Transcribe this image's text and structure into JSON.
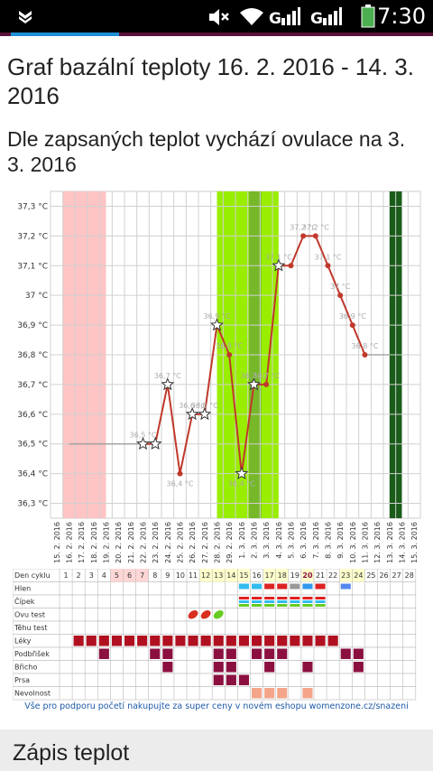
{
  "status_bar": {
    "time": "7:30"
  },
  "page": {
    "title": "Graf bazální teploty 16. 2. 2016 - 14. 3. 2016",
    "subtitle": "Dle zapsaných teplot vychází ovulace na 3. 3. 2016",
    "footer_note": "Vše pro podporu početí nakupujte za super ceny v novém eshopu womenzone.cz/snazeni",
    "section_title": "Zápis teplot"
  },
  "colors": {
    "accent": "#5a1239",
    "tab": "#1e90d6",
    "line": "#c0392b",
    "period": "#ffc4c4",
    "fertile": "#99ee00",
    "ovulation": "#76b82a",
    "today": "#1a5c1a",
    "cell_marker": "#8b1040"
  },
  "chart_data": {
    "type": "line",
    "y_ticks": [
      "36,3 °C",
      "36,4 °C",
      "36,5 °C",
      "36,6 °C",
      "36,7 °C",
      "36,8 °C",
      "36,9 °C",
      "37 °C",
      "37,1 °C",
      "37,2 °C",
      "37,3 °C"
    ],
    "ylim": [
      36.25,
      37.35
    ],
    "dates": [
      "15. 2. 2016",
      "16. 2. 2016",
      "17. 2. 2016",
      "18. 2. 2016",
      "19. 2. 2016",
      "20. 2. 2016",
      "21. 2. 2016",
      "22. 2. 2016",
      "23. 2. 2016",
      "24. 2. 2016",
      "25. 2. 2016",
      "26. 2. 2016",
      "27. 2. 2016",
      "28. 2. 2016",
      "29. 2. 2016",
      "1. 3. 2016",
      "2. 3. 2016",
      "3. 3. 2016",
      "4. 3. 2016",
      "5. 3. 2016",
      "6. 3. 2016",
      "7. 3. 2016",
      "8. 3. 2016",
      "9. 3. 2016",
      "10. 3. 2016",
      "11. 3. 2016",
      "12. 3. 2016",
      "13. 3. 2016",
      "14. 3. 2016",
      "15. 3. 2016"
    ],
    "baseline": {
      "value": 36.5,
      "label": "",
      "from_day": 1,
      "to_day": 7
    },
    "coverline": {
      "value": 36.8,
      "from_day": 25,
      "to_day": 27
    },
    "points": [
      {
        "day": 7,
        "value": 36.5,
        "label": "36,5 °C",
        "star": true
      },
      {
        "day": 8,
        "value": 36.5,
        "label": "",
        "star": true
      },
      {
        "day": 9,
        "value": 36.7,
        "label": "36,7 °C",
        "star": true
      },
      {
        "day": 10,
        "value": 36.4,
        "label": "36,4 °C",
        "star": false
      },
      {
        "day": 11,
        "value": 36.6,
        "label": "36,6 °C",
        "star": true
      },
      {
        "day": 12,
        "value": 36.6,
        "label": "36,6 °C",
        "star": true
      },
      {
        "day": 13,
        "value": 36.9,
        "label": "36,9 °C",
        "star": true
      },
      {
        "day": 14,
        "value": 36.8,
        "label": "36,8 °C",
        "star": false
      },
      {
        "day": 15,
        "value": 36.4,
        "label": "36,4 °C",
        "star": true
      },
      {
        "day": 16,
        "value": 36.7,
        "label": "36,7 °C",
        "star": true
      },
      {
        "day": 17,
        "value": 36.7,
        "label": "36,7 °C",
        "star": false
      },
      {
        "day": 18,
        "value": 37.1,
        "label": "37,1 °C",
        "star": true
      },
      {
        "day": 19,
        "value": 37.1,
        "label": "",
        "star": false
      },
      {
        "day": 20,
        "value": 37.2,
        "label": "37,2 °C",
        "star": false
      },
      {
        "day": 21,
        "value": 37.2,
        "label": "37,2 °C",
        "star": false
      },
      {
        "day": 22,
        "value": 37.1,
        "label": "37,1 °C",
        "star": false
      },
      {
        "day": 23,
        "value": 37.0,
        "label": "37 °C",
        "star": false
      },
      {
        "day": 24,
        "value": 36.9,
        "label": "36,9 °C",
        "star": false
      },
      {
        "day": 25,
        "value": 36.8,
        "label": "36,8 °C",
        "star": false
      }
    ],
    "bands": [
      {
        "kind": "period",
        "from_day": 1,
        "to_day": 4.5
      },
      {
        "kind": "fertile",
        "from_day": 13.5,
        "to_day": 18.5
      },
      {
        "kind": "ovulation",
        "from_day": 16.1,
        "to_day": 17.1
      },
      {
        "kind": "today",
        "from_day": 27.5,
        "to_day": 28.5
      }
    ],
    "grid": true
  },
  "cycle_table": {
    "row_labels": [
      "Den cyklu",
      "Hlen",
      "Čípek",
      "Ovu test",
      "Těhu test",
      "Léky",
      "Podbřišek",
      "Břicho",
      "Prsa",
      "Nevolnost"
    ],
    "days": [
      "1",
      "2",
      "3",
      "4",
      "5",
      "6",
      "7",
      "8",
      "9",
      "10",
      "11",
      "12",
      "13",
      "14",
      "15",
      "16",
      "17",
      "18",
      "19",
      "20",
      "21",
      "22",
      "23",
      "24",
      "25",
      "26",
      "27",
      "28"
    ],
    "day_highlights": {
      "5": "#ffd6d6",
      "6": "#ffd6d6",
      "7": "#ffd6d6",
      "12": "#ffffcc",
      "13": "#ffffcc",
      "14": "#ffffcc",
      "15": "#ffffcc",
      "17": "#ffffcc",
      "18": "#ffffcc",
      "20": "#ffffcc",
      "23": "#ffffcc",
      "24": "#ffffcc"
    },
    "today_day": "20",
    "marks": {
      "Léky": [
        2,
        3,
        4,
        5,
        6,
        7,
        8,
        9,
        10,
        11,
        12,
        13,
        14,
        15,
        16,
        17,
        18,
        19,
        20,
        21,
        22
      ],
      "Podbřišek": [
        4,
        8,
        9,
        13,
        14,
        16,
        17,
        18,
        23,
        24
      ],
      "Břicho": [
        9,
        13,
        14,
        17,
        20,
        24
      ],
      "Prsa": [
        13,
        14,
        15
      ],
      "Nevolnost": [
        16,
        17,
        18,
        20
      ]
    },
    "hlen_marks": [
      15,
      16,
      17,
      18,
      19,
      20,
      21,
      23
    ],
    "cipek_marks": [
      15,
      16,
      17,
      18,
      19,
      20,
      21
    ],
    "ovu_tests": [
      {
        "day": 11,
        "color": "#d83020"
      },
      {
        "day": 12,
        "color": "#d83020"
      },
      {
        "day": 13,
        "color": "#66cc22"
      }
    ]
  }
}
